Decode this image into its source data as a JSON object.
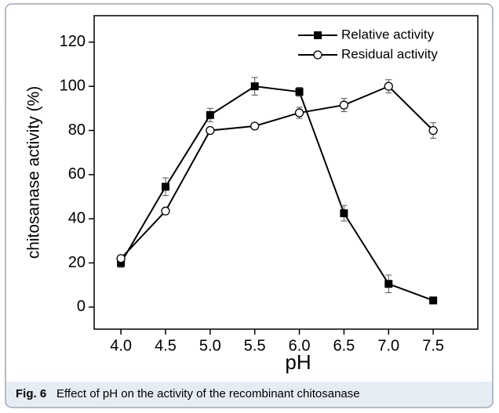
{
  "chart_data": {
    "type": "line",
    "xlabel": "pH",
    "ylabel": "chitosanase activity (%)",
    "x": [
      4.0,
      4.5,
      5.0,
      5.5,
      6.0,
      6.5,
      7.0,
      7.5
    ],
    "series": [
      {
        "name": "Relative activity",
        "color": "#000000",
        "marker": "filled-square",
        "values": [
          20,
          54.5,
          87,
          100,
          97.5,
          42.5,
          10.5,
          3
        ],
        "errors": [
          2,
          4,
          3,
          4,
          2,
          3.5,
          4,
          1
        ]
      },
      {
        "name": "Residual activity",
        "color": "#000000",
        "marker": "open-circle",
        "values": [
          22,
          43.5,
          80,
          82,
          88,
          91.5,
          100,
          80
        ],
        "errors": [
          1,
          1,
          1,
          1,
          2.5,
          3,
          3,
          3.5
        ]
      }
    ],
    "xlim": [
      3.7,
      8.0
    ],
    "xticks": [
      {
        "value": 4.0,
        "label": "4.0"
      },
      {
        "value": 4.5,
        "label": "4.5"
      },
      {
        "value": 5.0,
        "label": "5.0"
      },
      {
        "value": 5.5,
        "label": "5.5"
      },
      {
        "value": 6.0,
        "label": "6.0"
      },
      {
        "value": 6.5,
        "label": "6.5"
      },
      {
        "value": 7.0,
        "label": "7.0"
      },
      {
        "value": 7.5,
        "label": "7.5"
      }
    ],
    "ylim": [
      -10,
      132
    ],
    "yticks": [
      0,
      20,
      40,
      60,
      80,
      100,
      120
    ],
    "legend": "upper right",
    "grid": false
  },
  "caption": {
    "label": "Fig. 6",
    "text": "Effect of pH on the activity of the recombinant chitosanase"
  }
}
